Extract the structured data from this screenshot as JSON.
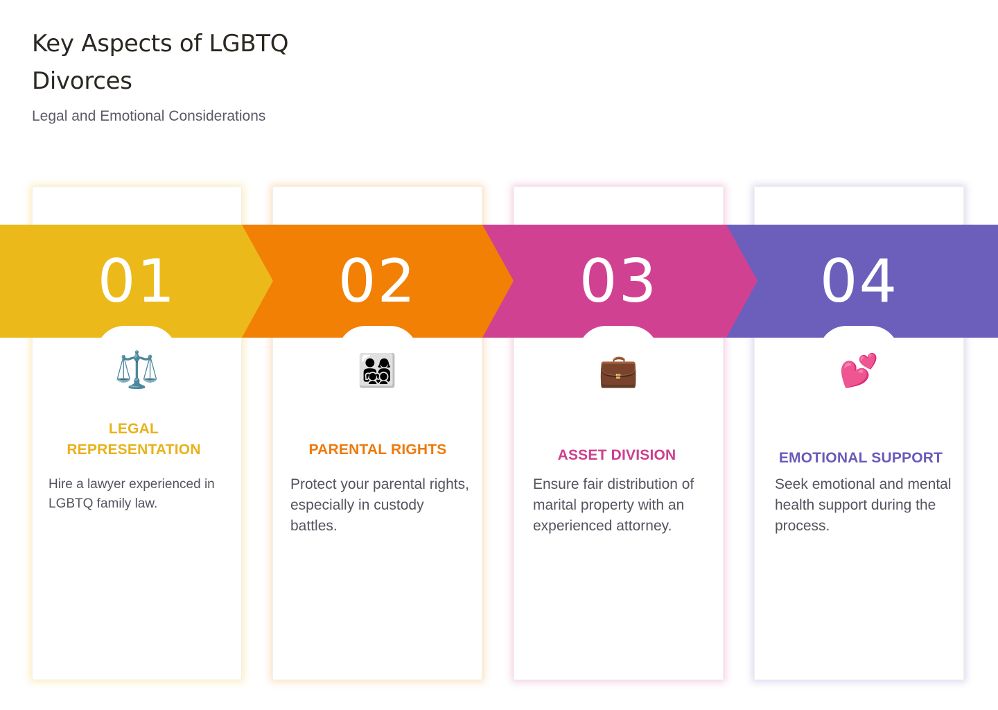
{
  "header": {
    "title": "Key Aspects of LGBTQ Divorces",
    "subtitle": "Legal and Emotional Considerations"
  },
  "steps": [
    {
      "number": "01",
      "icon": "⚖️",
      "icon_name": "scales-icon",
      "heading": "LEGAL REPRESENTATION",
      "description": "Hire a lawyer experienced in LGBTQ family law.",
      "color": "#EBB91A"
    },
    {
      "number": "02",
      "icon": "👨‍👩‍👧‍👦",
      "icon_name": "family-icon",
      "heading": "PARENTAL RIGHTS",
      "description": "Protect your parental rights, especially in custody battles.",
      "color": "#F18005"
    },
    {
      "number": "03",
      "icon": "💼",
      "icon_name": "briefcase-icon",
      "heading": "ASSET DIVISION",
      "description": "Ensure fair distribution of marital property with an experienced attorney.",
      "color": "#D14192"
    },
    {
      "number": "04",
      "icon": "💕",
      "icon_name": "two-hearts-icon",
      "heading": "EMOTIONAL SUPPORT",
      "description": "Seek emotional and mental health support during the process.",
      "color": "#6C5FBC"
    }
  ]
}
